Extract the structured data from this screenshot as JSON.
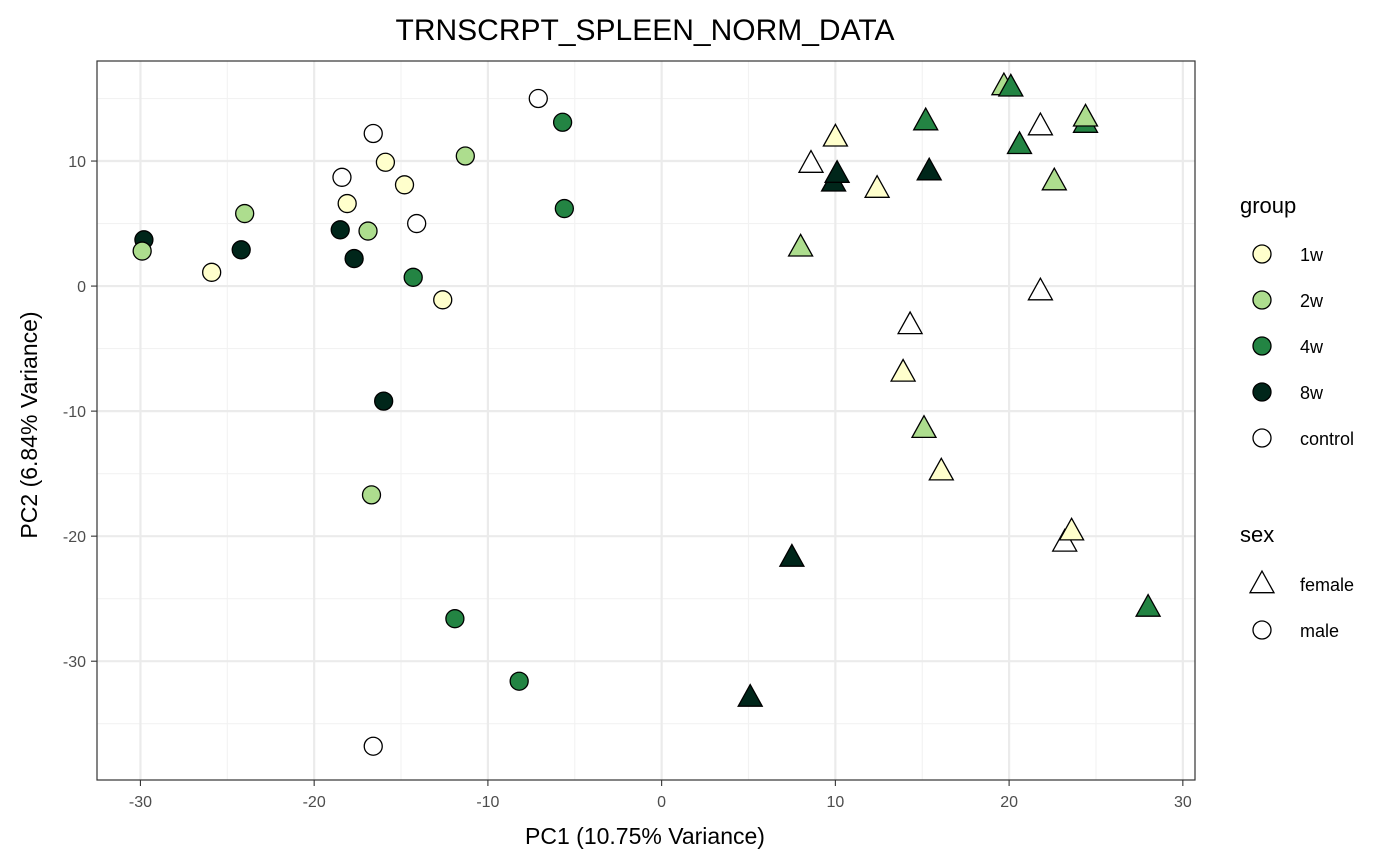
{
  "chart_data": {
    "type": "scatter",
    "title": "TRNSCRPT_SPLEEN_NORM_DATA",
    "xlabel": "PC1 (10.75% Variance)",
    "ylabel": "PC2 (6.84% Variance)",
    "xlim": [
      -32.5,
      30.7
    ],
    "ylim": [
      -39.5,
      18.0
    ],
    "xticks": [
      -30,
      -20,
      -10,
      0,
      10,
      20,
      30
    ],
    "yticks": [
      -30,
      -20,
      -10,
      0,
      10
    ],
    "grid": true,
    "colors": {
      "1w": "#ffffcc",
      "2w": "#addd8e",
      "4w": "#238443",
      "8w": "#00261a",
      "control": "#ffffff"
    },
    "legend_group": {
      "title": "group",
      "items": [
        "1w",
        "2w",
        "4w",
        "8w",
        "control"
      ]
    },
    "legend_sex": {
      "title": "sex",
      "items": [
        "female",
        "male"
      ],
      "shapes": [
        "triangle",
        "circle"
      ]
    },
    "points": [
      {
        "x": -29.8,
        "y": 3.7,
        "group": "8w",
        "sex": "male"
      },
      {
        "x": -29.9,
        "y": 2.8,
        "group": "2w",
        "sex": "male"
      },
      {
        "x": -25.9,
        "y": 1.1,
        "group": "1w",
        "sex": "male"
      },
      {
        "x": -24.2,
        "y": 2.9,
        "group": "8w",
        "sex": "male"
      },
      {
        "x": -24.0,
        "y": 5.8,
        "group": "2w",
        "sex": "male"
      },
      {
        "x": -18.4,
        "y": 8.7,
        "group": "control",
        "sex": "male"
      },
      {
        "x": -18.1,
        "y": 6.6,
        "group": "1w",
        "sex": "male"
      },
      {
        "x": -18.5,
        "y": 4.5,
        "group": "8w",
        "sex": "male"
      },
      {
        "x": -17.7,
        "y": 2.2,
        "group": "8w",
        "sex": "male"
      },
      {
        "x": -16.9,
        "y": 4.4,
        "group": "2w",
        "sex": "male"
      },
      {
        "x": -16.6,
        "y": 12.2,
        "group": "control",
        "sex": "male"
      },
      {
        "x": -15.9,
        "y": 9.9,
        "group": "1w",
        "sex": "male"
      },
      {
        "x": -14.8,
        "y": 8.1,
        "group": "1w",
        "sex": "male"
      },
      {
        "x": -14.1,
        "y": 5.0,
        "group": "control",
        "sex": "male"
      },
      {
        "x": -14.3,
        "y": 0.7,
        "group": "4w",
        "sex": "male"
      },
      {
        "x": -12.6,
        "y": -1.1,
        "group": "1w",
        "sex": "male"
      },
      {
        "x": -11.3,
        "y": 10.4,
        "group": "2w",
        "sex": "male"
      },
      {
        "x": -7.1,
        "y": 15.0,
        "group": "control",
        "sex": "male"
      },
      {
        "x": -5.7,
        "y": 13.1,
        "group": "4w",
        "sex": "male"
      },
      {
        "x": -5.6,
        "y": 6.2,
        "group": "4w",
        "sex": "male"
      },
      {
        "x": -16.0,
        "y": -9.2,
        "group": "8w",
        "sex": "male"
      },
      {
        "x": -16.7,
        "y": -16.7,
        "group": "2w",
        "sex": "male"
      },
      {
        "x": -11.9,
        "y": -26.6,
        "group": "4w",
        "sex": "male"
      },
      {
        "x": -8.2,
        "y": -31.6,
        "group": "4w",
        "sex": "male"
      },
      {
        "x": -16.6,
        "y": -36.8,
        "group": "control",
        "sex": "male"
      },
      {
        "x": 10.0,
        "y": 11.9,
        "group": "1w",
        "sex": "female"
      },
      {
        "x": 8.6,
        "y": 9.8,
        "group": "control",
        "sex": "female"
      },
      {
        "x": 9.9,
        "y": 8.3,
        "group": "8w",
        "sex": "female"
      },
      {
        "x": 10.1,
        "y": 9.0,
        "group": "8w",
        "sex": "female"
      },
      {
        "x": 12.4,
        "y": 7.8,
        "group": "1w",
        "sex": "female"
      },
      {
        "x": 8.0,
        "y": 3.1,
        "group": "2w",
        "sex": "female"
      },
      {
        "x": 15.2,
        "y": 13.2,
        "group": "4w",
        "sex": "female"
      },
      {
        "x": 15.4,
        "y": 9.2,
        "group": "8w",
        "sex": "female"
      },
      {
        "x": 19.7,
        "y": 16.0,
        "group": "2w",
        "sex": "female"
      },
      {
        "x": 20.1,
        "y": 15.9,
        "group": "4w",
        "sex": "female"
      },
      {
        "x": 21.8,
        "y": 12.8,
        "group": "control",
        "sex": "female"
      },
      {
        "x": 20.6,
        "y": 11.3,
        "group": "4w",
        "sex": "female"
      },
      {
        "x": 24.4,
        "y": 13.0,
        "group": "4w",
        "sex": "female"
      },
      {
        "x": 24.4,
        "y": 13.5,
        "group": "2w",
        "sex": "female"
      },
      {
        "x": 22.6,
        "y": 8.4,
        "group": "2w",
        "sex": "female"
      },
      {
        "x": 21.8,
        "y": -0.4,
        "group": "control",
        "sex": "female"
      },
      {
        "x": 14.3,
        "y": -3.1,
        "group": "control",
        "sex": "female"
      },
      {
        "x": 13.9,
        "y": -6.9,
        "group": "1w",
        "sex": "female"
      },
      {
        "x": 15.1,
        "y": -11.4,
        "group": "2w",
        "sex": "female"
      },
      {
        "x": 16.1,
        "y": -14.8,
        "group": "1w",
        "sex": "female"
      },
      {
        "x": 23.2,
        "y": -20.5,
        "group": "control",
        "sex": "female"
      },
      {
        "x": 23.6,
        "y": -19.6,
        "group": "1w",
        "sex": "female"
      },
      {
        "x": 7.5,
        "y": -21.7,
        "group": "8w",
        "sex": "female"
      },
      {
        "x": 28.0,
        "y": -25.7,
        "group": "4w",
        "sex": "female"
      },
      {
        "x": 5.1,
        "y": -32.9,
        "group": "8w",
        "sex": "female"
      }
    ]
  }
}
